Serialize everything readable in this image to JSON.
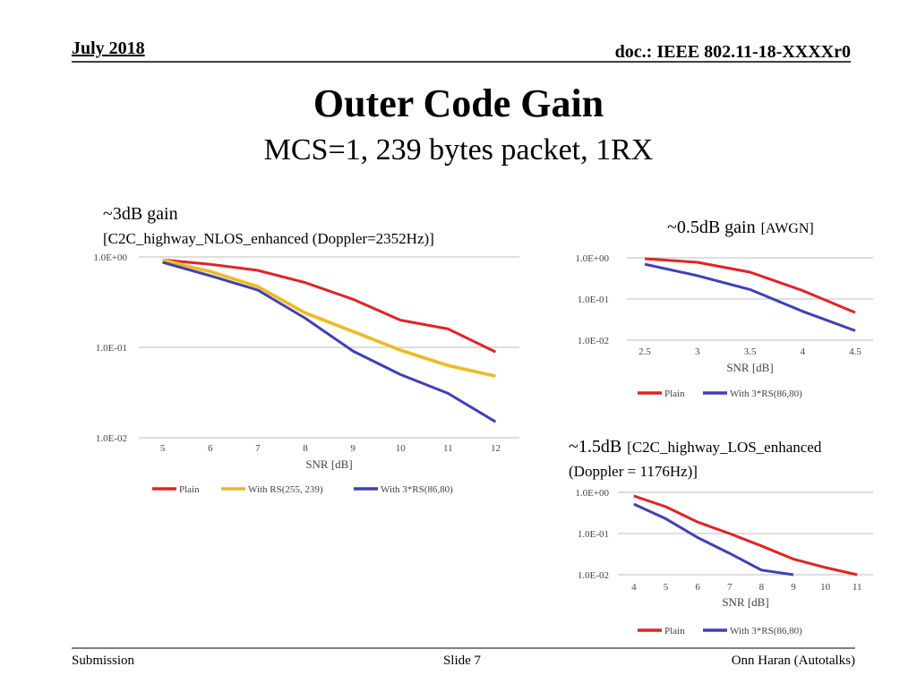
{
  "header": {
    "date": "July 2018",
    "doc": "doc.: IEEE 802.11-18-XXXXr0"
  },
  "title": "Outer Code Gain",
  "subtitle": "MCS=1, 239 bytes packet, 1RX",
  "footer": {
    "left": "Submission",
    "center": "Slide 7",
    "right": "Onn Haran (Autotalks)"
  },
  "chart_data": [
    {
      "type": "line",
      "annotations": [
        "~3dB gain",
        "[C2C_highway_NLOS_enhanced (Doppler=2352Hz)]"
      ],
      "x_label": "SNR [dB]",
      "log_scale": true,
      "grid": true,
      "legend": "bottom",
      "x": [
        5,
        6,
        7,
        8,
        9,
        10,
        11,
        12
      ],
      "xlim": [
        4.5,
        12.5
      ],
      "xticks": [
        5,
        6,
        7,
        8,
        9,
        10,
        11,
        12
      ],
      "ylim": [
        0.01,
        1
      ],
      "yticks": [
        {
          "value": 1,
          "label": "1.0E+00"
        },
        {
          "value": 0.1,
          "label": "1.0E-01"
        },
        {
          "value": 0.01,
          "label": "1.0E-02"
        }
      ],
      "series": [
        {
          "name": "Plain",
          "color": "#e02424",
          "values": [
            0.93,
            0.83,
            0.71,
            0.52,
            0.34,
            0.2,
            0.16,
            0.089
          ]
        },
        {
          "name": "With RS(255, 239)",
          "color": "#e6b52e",
          "values": [
            0.91,
            0.69,
            0.47,
            0.24,
            0.15,
            0.093,
            0.063,
            0.048
          ]
        },
        {
          "name": "With 3*RS(86,80)",
          "color": "#4040b4",
          "values": [
            0.87,
            0.62,
            0.43,
            0.21,
            0.091,
            0.05,
            0.031,
            0.015
          ]
        }
      ]
    },
    {
      "type": "line",
      "annotations": [
        "~0.5dB gain",
        "[AWGN]"
      ],
      "x_label": "SNR [dB]",
      "log_scale": true,
      "grid": true,
      "legend": "bottom",
      "x": [
        2.5,
        3,
        3.5,
        4,
        4.5
      ],
      "xlim": [
        2.33,
        4.67
      ],
      "xticks": [
        2.5,
        3,
        3.5,
        4,
        4.5
      ],
      "ylim": [
        0.01,
        1
      ],
      "yticks": [
        {
          "value": 1,
          "label": "1.0E+00"
        },
        {
          "value": 0.1,
          "label": "1.0E-01"
        },
        {
          "value": 0.01,
          "label": "1.0E-02"
        }
      ],
      "series": [
        {
          "name": "Plain",
          "color": "#e02424",
          "values": [
            0.95,
            0.78,
            0.45,
            0.16,
            0.047
          ]
        },
        {
          "name": "With 3*RS(86,80)",
          "color": "#4040b4",
          "values": [
            0.7,
            0.37,
            0.17,
            0.05,
            0.017
          ]
        }
      ]
    },
    {
      "type": "line",
      "annotations": [
        "~1.5dB",
        "[C2C_highway_LOS_enhanced",
        "(Doppler = 1176Hz)]"
      ],
      "x_label": "SNR [dB]",
      "log_scale": true,
      "grid": true,
      "legend": "bottom",
      "x": [
        4,
        5,
        6,
        7,
        8,
        9,
        10,
        11
      ],
      "xlim": [
        3.5,
        11.5
      ],
      "xticks": [
        4,
        5,
        6,
        7,
        8,
        9,
        10,
        11
      ],
      "ylim": [
        0.01,
        1
      ],
      "yticks": [
        {
          "value": 1,
          "label": "1.0E+00"
        },
        {
          "value": 0.1,
          "label": "1.0E-01"
        },
        {
          "value": 0.01,
          "label": "1.0E-02"
        }
      ],
      "series": [
        {
          "name": "Plain",
          "color": "#e02424",
          "values": [
            0.82,
            0.45,
            0.19,
            0.1,
            0.05,
            0.024,
            0.015,
            0.01
          ]
        },
        {
          "name": "With 3*RS(86,80)",
          "color": "#4040b4",
          "values": [
            0.52,
            0.23,
            0.08,
            0.033,
            0.013,
            0.01,
            null,
            null
          ]
        }
      ]
    }
  ]
}
